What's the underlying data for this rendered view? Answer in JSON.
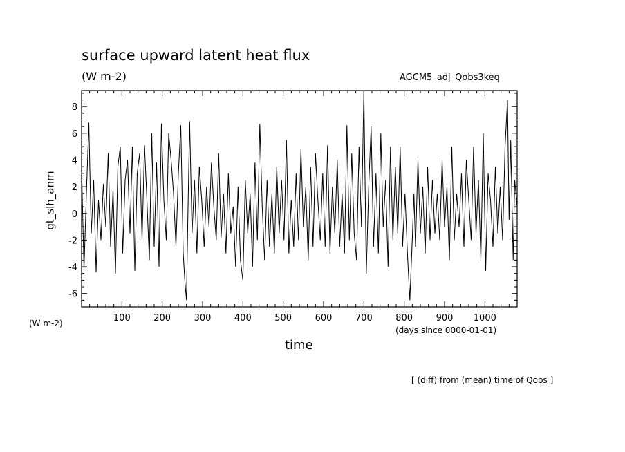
{
  "title": "surface upward latent heat flux",
  "units_top": "(W m-2)",
  "experiment": "AGCM5_adj_Qobs3keq",
  "units_left": "(W m-2)",
  "units_x": "(days since 0000-01-01)",
  "footnote": "[ (diff) from (mean) time of Qobs ]",
  "chart_data": {
    "type": "line",
    "title": "surface upward latent heat flux",
    "xlabel": "time",
    "ylabel": "gt_slh_anm",
    "xlim": [
      0,
      1080
    ],
    "ylim": [
      -7,
      9.2
    ],
    "x_ticks": [
      100,
      200,
      300,
      400,
      500,
      600,
      700,
      800,
      900,
      1000
    ],
    "y_ticks": [
      -6,
      -4,
      -2,
      0,
      2,
      4,
      6,
      8
    ],
    "grid": false,
    "series": [
      {
        "x": [
          0,
          6,
          12,
          18,
          24,
          30,
          36,
          42,
          48,
          54,
          60,
          66,
          72,
          78,
          84,
          90,
          96,
          102,
          108,
          114,
          120,
          126,
          132,
          138,
          144,
          150,
          156,
          162,
          168,
          174,
          180,
          186,
          192,
          198,
          204,
          210,
          216,
          222,
          228,
          234,
          240,
          246,
          252,
          256,
          260,
          264,
          268,
          274,
          280,
          286,
          292,
          298,
          304,
          310,
          316,
          322,
          328,
          334,
          340,
          346,
          352,
          358,
          364,
          370,
          376,
          382,
          388,
          394,
          400,
          406,
          412,
          418,
          424,
          430,
          436,
          442,
          448,
          454,
          460,
          466,
          472,
          478,
          484,
          490,
          496,
          502,
          508,
          514,
          520,
          526,
          532,
          538,
          544,
          550,
          556,
          562,
          568,
          574,
          580,
          586,
          592,
          598,
          604,
          610,
          616,
          622,
          628,
          634,
          640,
          646,
          652,
          658,
          664,
          670,
          676,
          682,
          688,
          694,
          700,
          706,
          712,
          718,
          724,
          730,
          736,
          742,
          748,
          754,
          760,
          766,
          772,
          778,
          784,
          790,
          796,
          802,
          808,
          814,
          820,
          824,
          828,
          834,
          840,
          846,
          852,
          858,
          864,
          870,
          876,
          882,
          888,
          894,
          900,
          906,
          912,
          918,
          924,
          930,
          936,
          942,
          948,
          954,
          960,
          966,
          972,
          978,
          984,
          990,
          996,
          1002,
          1008,
          1014,
          1020,
          1026,
          1032,
          1038,
          1044,
          1050,
          1056,
          1060,
          1064,
          1070,
          1074,
          1080
        ],
        "y": [
          3.5,
          -4.2,
          1.5,
          6.8,
          -1.5,
          2.5,
          -4.4,
          1.0,
          -2.0,
          2.2,
          -1.0,
          4.5,
          -2.5,
          1.8,
          -4.5,
          3.5,
          5.0,
          -3.0,
          2.5,
          4.0,
          -1.5,
          5.0,
          -4.3,
          3.0,
          4.5,
          -2.0,
          5.1,
          1.0,
          -3.5,
          6.0,
          -2.5,
          3.8,
          -4.0,
          6.7,
          1.0,
          -2.0,
          6.0,
          4.0,
          1.5,
          -2.5,
          3.0,
          6.6,
          -3.0,
          -5.0,
          -6.5,
          0.5,
          6.9,
          -1.5,
          2.5,
          -3.0,
          3.5,
          1.0,
          -2.5,
          2.0,
          -1.0,
          3.8,
          0.5,
          -2.0,
          4.5,
          -1.8,
          1.5,
          -3.0,
          3.0,
          -1.5,
          0.5,
          -4.0,
          2.0,
          -3.5,
          -5.0,
          2.5,
          -1.5,
          1.5,
          -4.0,
          3.8,
          -2.0,
          6.7,
          0.5,
          -3.5,
          2.5,
          -2.5,
          1.5,
          -3.0,
          3.5,
          -1.5,
          2.5,
          -2.0,
          5.5,
          -3.0,
          1.0,
          -2.5,
          3.0,
          -2.0,
          4.8,
          -1.0,
          2.0,
          -3.5,
          3.5,
          -2.5,
          4.5,
          1.0,
          -2.0,
          3.0,
          -2.5,
          5.1,
          -3.0,
          2.0,
          -1.5,
          4.0,
          -2.5,
          1.5,
          -3.0,
          6.6,
          -2.0,
          4.5,
          -1.5,
          -3.5,
          5.0,
          -1.0,
          9.2,
          -4.5,
          2.0,
          6.5,
          -2.5,
          3.0,
          -3.0,
          6.0,
          -1.0,
          2.5,
          -4.0,
          5.0,
          -2.0,
          3.5,
          -1.5,
          5.0,
          -2.5,
          1.5,
          -3.0,
          -6.5,
          -2.0,
          1.5,
          -2.5,
          4.0,
          -1.5,
          2.0,
          -3.0,
          3.5,
          -2.0,
          2.5,
          -1.5,
          1.5,
          -2.0,
          4.0,
          -1.0,
          2.0,
          -3.5,
          5.0,
          -2.0,
          1.5,
          -1.0,
          3.0,
          -2.5,
          4.0,
          1.0,
          -2.0,
          5.0,
          -1.5,
          2.5,
          -3.5,
          6.0,
          -4.3,
          3.0,
          1.0,
          -2.5,
          3.5,
          -1.5,
          2.0,
          -2.0,
          5.0,
          8.5,
          -0.5,
          5.5,
          -3.5,
          2.5,
          0.5
        ]
      }
    ]
  }
}
